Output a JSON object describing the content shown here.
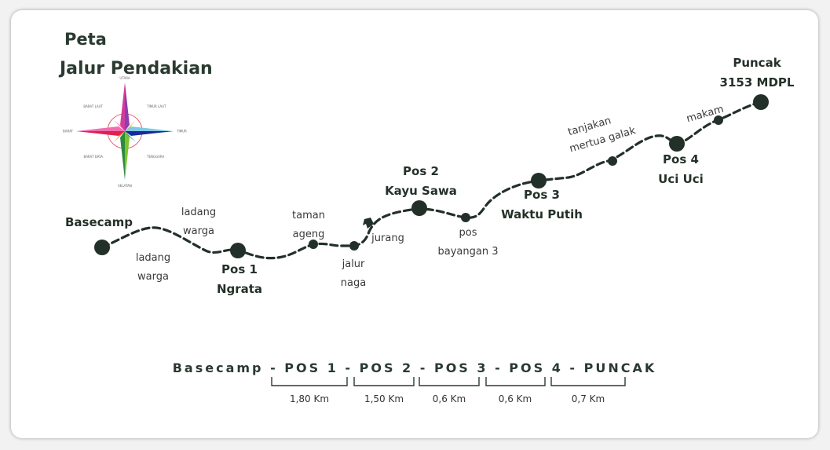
{
  "title": {
    "line1": "Peta",
    "line2": "Jalur Pendakian"
  },
  "compass": {
    "north": "UTARA",
    "northeast": "TIMUR LAUT",
    "east": "TIMUR",
    "southeast": "TENGGARA",
    "south": "SELATAN",
    "southwest": "BARAT DAYA",
    "west": "BARAT",
    "northwest": "BARAT LAUT"
  },
  "stations": {
    "basecamp": "Basecamp",
    "pos1": [
      "Pos 1",
      "Ngrata"
    ],
    "pos2": [
      "Pos 2",
      "Kayu Sawa"
    ],
    "pos3": [
      "Pos 3",
      "Waktu Putih"
    ],
    "pos4": [
      "Pos 4",
      "Uci Uci"
    ],
    "puncak": [
      "Puncak",
      "3153 MDPL"
    ]
  },
  "waypoints": {
    "ladang_warga_top": [
      "ladang",
      "warga"
    ],
    "ladang_warga_bottom": [
      "ladang",
      "warga"
    ],
    "taman_ageng": [
      "taman",
      "ageng"
    ],
    "jalur_naga": [
      "jalur",
      "naga"
    ],
    "jurang": "jurang",
    "pos_bayangan_3": [
      "pos",
      "bayangan 3"
    ],
    "tanjakan": [
      "tanjakan",
      "mertua galak"
    ],
    "makam": "makam"
  },
  "summary": {
    "route": "Basecamp - POS 1 - POS 2 - POS 3 - POS 4 - PUNCAK",
    "distances": [
      "1,80 Km",
      "1,50 Km",
      "0,6 Km",
      "0,6 Km",
      "0,7 Km"
    ]
  },
  "colors": {
    "trail": "#233029",
    "text_dark": "#2a3a30"
  }
}
